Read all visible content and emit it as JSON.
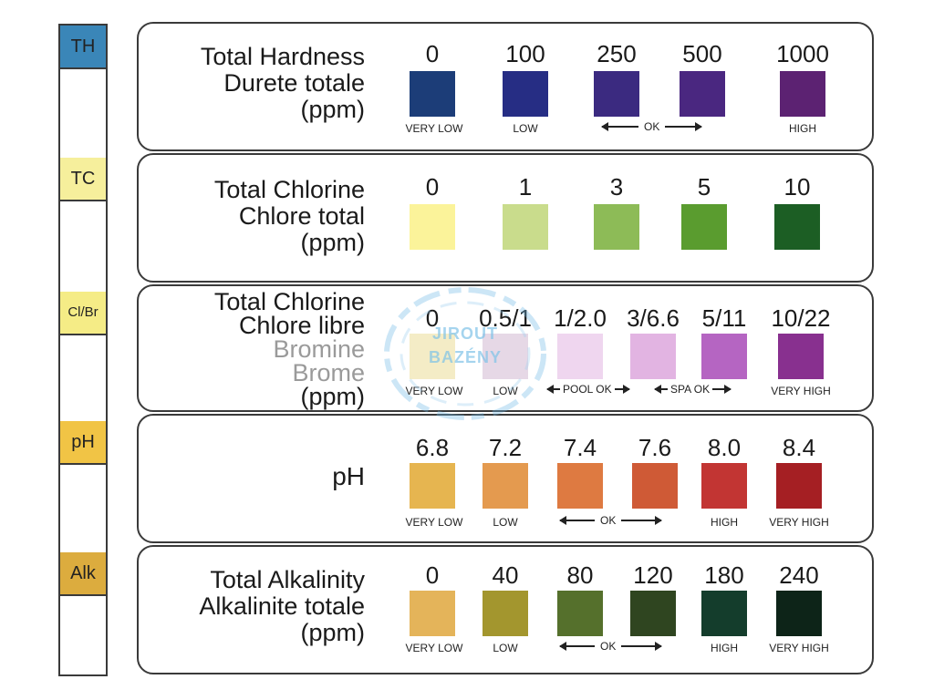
{
  "strip": {
    "pads": [
      {
        "code": "TH",
        "color": "#3a86b8"
      },
      {
        "code": "TC",
        "color": "#f6ef9c"
      },
      {
        "code": "Cl/Br",
        "color": "#f5ec86"
      },
      {
        "code": "pH",
        "color": "#f1c445"
      },
      {
        "code": "Alk",
        "color": "#dcac3e"
      }
    ]
  },
  "panels": [
    {
      "label_lines": [
        "Total Hardness",
        "Durete totale",
        "(ppm)"
      ],
      "values": [
        "0",
        "100",
        "250",
        "500",
        "1000"
      ],
      "colors": [
        "#1c3d78",
        "#262d84",
        "#3b2a80",
        "#4a2780",
        "#5c2272"
      ],
      "ranges": [
        "VERY LOW",
        "LOW",
        "",
        "",
        "HIGH"
      ],
      "ok_label": "OK"
    },
    {
      "label_lines": [
        "Total Chlorine",
        "Chlore total",
        "(ppm)"
      ],
      "values": [
        "0",
        "1",
        "3",
        "5",
        "10"
      ],
      "colors": [
        "#fbf39a",
        "#c9dc8c",
        "#8dbb57",
        "#5a9c2f",
        "#1c5e24"
      ]
    },
    {
      "label_lines": [
        "Total Chlorine",
        "Chlore libre",
        "Bromine",
        "Brome",
        "(ppm)"
      ],
      "values": [
        "0",
        "0.5/1",
        "1/2.0",
        "3/6.6",
        "5/11",
        "10/22"
      ],
      "colors": [
        "#f4ecc6",
        "#e6d8e6",
        "#efd6ef",
        "#e2b4e2",
        "#b565c2",
        "#88308f"
      ],
      "ranges": [
        "VERY LOW",
        "LOW",
        "",
        "",
        "",
        "VERY HIGH"
      ],
      "pool_label": "POOL OK",
      "spa_label": "SPA OK"
    },
    {
      "label_lines": [
        "pH"
      ],
      "values": [
        "6.8",
        "7.2",
        "7.4",
        "7.6",
        "8.0",
        "8.4"
      ],
      "colors": [
        "#e6b550",
        "#e49a4f",
        "#de7a41",
        "#cf5a36",
        "#c23533",
        "#a51f23"
      ],
      "ranges": [
        "VERY LOW",
        "LOW",
        "",
        "",
        "HIGH",
        "VERY HIGH"
      ],
      "ok_label": "OK"
    },
    {
      "label_lines": [
        "Total Alkalinity",
        "Alkalinite totale",
        "(ppm)"
      ],
      "values": [
        "0",
        "40",
        "80",
        "120",
        "180",
        "240"
      ],
      "colors": [
        "#e4b45a",
        "#a3962e",
        "#55702c",
        "#2f4520",
        "#143d2c",
        "#0d2418"
      ],
      "ranges": [
        "VERY LOW",
        "LOW",
        "",
        "",
        "HIGH",
        "VERY HIGH"
      ],
      "ok_label": "OK"
    }
  ],
  "watermark": {
    "line1": "JIROUT",
    "line2": "BAZÉNY"
  }
}
